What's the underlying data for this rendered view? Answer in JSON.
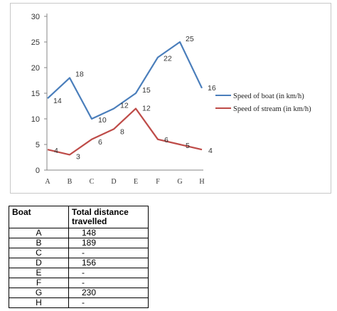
{
  "chart_data": {
    "type": "line",
    "categories": [
      "A",
      "B",
      "C",
      "D",
      "E",
      "F",
      "G",
      "H"
    ],
    "series": [
      {
        "name": "Speed of boat  (in km/h)",
        "values": [
          14,
          18,
          10,
          12,
          15,
          22,
          25,
          16
        ],
        "color": "#4a7ebb"
      },
      {
        "name": "Speed of stream  (in km/h)",
        "values": [
          4,
          3,
          6,
          8,
          12,
          6,
          5,
          4
        ],
        "color": "#be4b48"
      }
    ],
    "ylim": [
      0,
      30
    ],
    "yticks": [
      0,
      5,
      10,
      15,
      20,
      25,
      30
    ],
    "grid": false,
    "legend_position": "right"
  },
  "table": {
    "headers": [
      "Boat",
      "Total distance travelled"
    ],
    "rows": [
      [
        "A",
        "148"
      ],
      [
        "B",
        "189"
      ],
      [
        "C",
        "-"
      ],
      [
        "D",
        "156"
      ],
      [
        "E",
        "-"
      ],
      [
        "F",
        "-"
      ],
      [
        "G",
        "230"
      ],
      [
        "H",
        "-"
      ]
    ]
  }
}
